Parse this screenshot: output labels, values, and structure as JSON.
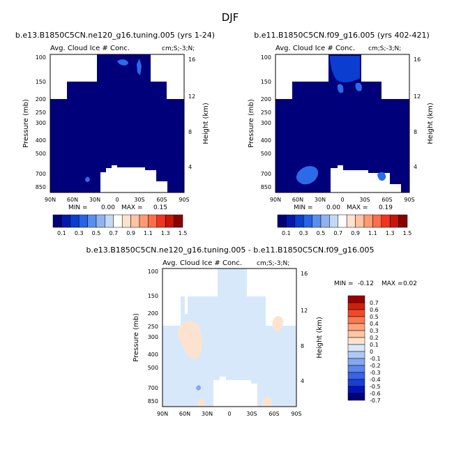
{
  "figure_title": "DJF",
  "colors": {
    "abs_scale": [
      "#00007a",
      "#001aa8",
      "#0a3dd0",
      "#2563e8",
      "#5a8eec",
      "#8fb3f0",
      "#c2d8f6",
      "#ffffff",
      "#ffe2cc",
      "#ffc2a2",
      "#ff9a73",
      "#ff6e4a",
      "#f2341f",
      "#c81508",
      "#8a0000"
    ],
    "diff_scale": [
      "#00007a",
      "#0015b8",
      "#1a3fd6",
      "#3a63e6",
      "#5e85ec",
      "#86a8f0",
      "#b0c8f4",
      "#d8e8fb",
      "#fde3cf",
      "#fcc5a4",
      "#fca47c",
      "#f87a52",
      "#ee4a2a",
      "#d0200c",
      "#9a0000"
    ]
  },
  "chart_data": [
    {
      "type": "heatmap",
      "title": "b.e13.B1850C5CN.ne120_g16.tuning.005 (yrs 1-24)",
      "subtitle": "Avg. Cloud Ice # Conc.",
      "units": "cm;S;-3;N;",
      "ylabel": "Pressure (mb)",
      "y2label": "Height (km)",
      "x_ticks": [
        "90N",
        "60N",
        "30N",
        "0",
        "30S",
        "60S",
        "90S"
      ],
      "y_ticks": [
        "100",
        "150",
        "200",
        "250",
        "300",
        "400",
        "500",
        "700",
        "850"
      ],
      "y2_ticks": [
        "16",
        "12",
        "8",
        "4"
      ],
      "ylim": [
        100,
        900
      ],
      "min_label": "MIN =",
      "min_value": "0.00",
      "max_label": "MAX =",
      "max_value": "0.15",
      "colorbar_labels": [
        "0.1",
        "0.3",
        "0.5",
        "0.7",
        "0.9",
        "1.1",
        "1.3",
        "1.5"
      ]
    },
    {
      "type": "heatmap",
      "title": "b.e11.B1850C5CN.f09_g16.005 (yrs 402-421)",
      "subtitle": "Avg. Cloud Ice # Conc.",
      "units": "cm;S;-3;N;",
      "ylabel": "Pressure (mb)",
      "y2label": "Height (km)",
      "x_ticks": [
        "90N",
        "60N",
        "30N",
        "0",
        "30S",
        "60S",
        "90S"
      ],
      "y_ticks": [
        "100",
        "150",
        "200",
        "250",
        "300",
        "400",
        "500",
        "700",
        "850"
      ],
      "y2_ticks": [
        "16",
        "12",
        "8",
        "4"
      ],
      "ylim": [
        100,
        900
      ],
      "min_label": "MIN =",
      "min_value": "0.00",
      "max_label": "MAX =",
      "max_value": "0.19",
      "colorbar_labels": [
        "0.1",
        "0.3",
        "0.5",
        "0.7",
        "0.9",
        "1.1",
        "1.3",
        "1.5"
      ]
    },
    {
      "type": "heatmap",
      "title": "b.e13.B1850C5CN.ne120_g16.tuning.005 - b.e11.B1850C5CN.f09_g16.005",
      "subtitle": "Avg. Cloud Ice # Conc.",
      "units": "cm;S;-3;N;",
      "ylabel": "Pressure (mb)",
      "y2label": "Height (km)",
      "x_ticks": [
        "90N",
        "60N",
        "30N",
        "0",
        "30S",
        "60S",
        "90S"
      ],
      "y_ticks": [
        "100",
        "150",
        "200",
        "250",
        "300",
        "400",
        "500",
        "700",
        "850"
      ],
      "y2_ticks": [
        "16",
        "12",
        "8",
        "4"
      ],
      "ylim": [
        100,
        900
      ],
      "min_label": "MIN =",
      "min_value": "-0.12",
      "max_label": "MAX =",
      "max_value": "0.02",
      "colorbar_labels": [
        "0.7",
        "0.6",
        "0.5",
        "0.4",
        "0.3",
        "0.2",
        "0.1",
        "0",
        "-0.1",
        "-0.2",
        "-0.3",
        "-0.4",
        "-0.5",
        "-0.6",
        "-0.7"
      ]
    }
  ]
}
